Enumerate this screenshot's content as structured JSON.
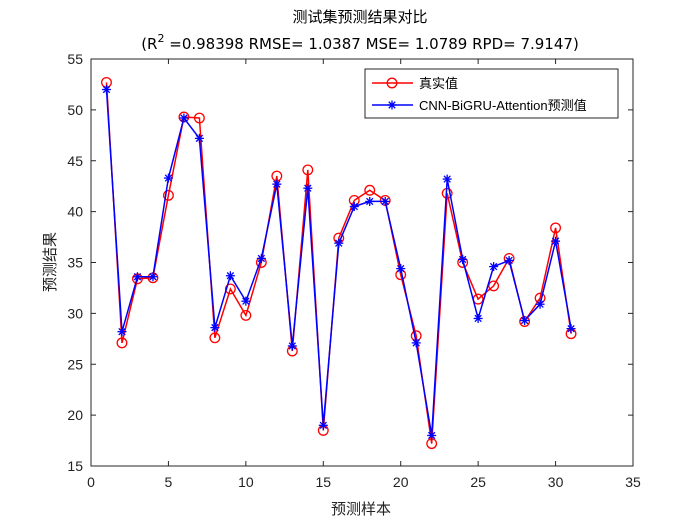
{
  "chart_data": {
    "type": "line",
    "title": "测试集预测结果对比",
    "subtitle": {
      "prefix": "(R",
      "sup": "2",
      "rest": " =0.98398 RMSE= 1.0387 MSE= 1.0789 RPD= 7.9147)"
    },
    "xlabel": "预测样本",
    "ylabel": "预测结果",
    "xlim": [
      0,
      35
    ],
    "ylim": [
      15,
      55
    ],
    "xticks": [
      0,
      5,
      10,
      15,
      20,
      25,
      30,
      35
    ],
    "yticks": [
      15,
      20,
      25,
      30,
      35,
      40,
      45,
      50,
      55
    ],
    "grid": false,
    "legend_position": "top-right",
    "x": [
      1,
      2,
      3,
      4,
      5,
      6,
      7,
      8,
      9,
      10,
      11,
      12,
      13,
      14,
      15,
      16,
      17,
      18,
      19,
      20,
      21,
      22,
      23,
      24,
      25,
      26,
      27,
      28,
      29,
      30,
      31
    ],
    "series": [
      {
        "name": "真实值",
        "color": "#ff0000",
        "marker": "circle",
        "values": [
          52.7,
          27.1,
          33.4,
          33.5,
          41.6,
          49.3,
          49.2,
          27.6,
          32.4,
          29.8,
          35.0,
          43.5,
          26.3,
          44.1,
          18.5,
          37.4,
          41.1,
          42.1,
          41.1,
          33.8,
          27.8,
          17.2,
          41.8,
          35.0,
          31.4,
          32.7,
          35.4,
          29.2,
          31.5,
          38.4,
          28.0
        ]
      },
      {
        "name": "CNN-BiGRU-Attention预测值",
        "color": "#0000ff",
        "marker": "star",
        "values": [
          52.0,
          28.2,
          33.6,
          33.6,
          43.3,
          49.2,
          47.2,
          28.6,
          33.7,
          31.2,
          35.4,
          42.7,
          26.8,
          42.3,
          19.0,
          36.9,
          40.5,
          41.0,
          41.0,
          34.4,
          27.1,
          18.0,
          43.2,
          35.3,
          29.5,
          34.6,
          35.2,
          29.3,
          30.9,
          37.1,
          28.5
        ]
      }
    ]
  }
}
